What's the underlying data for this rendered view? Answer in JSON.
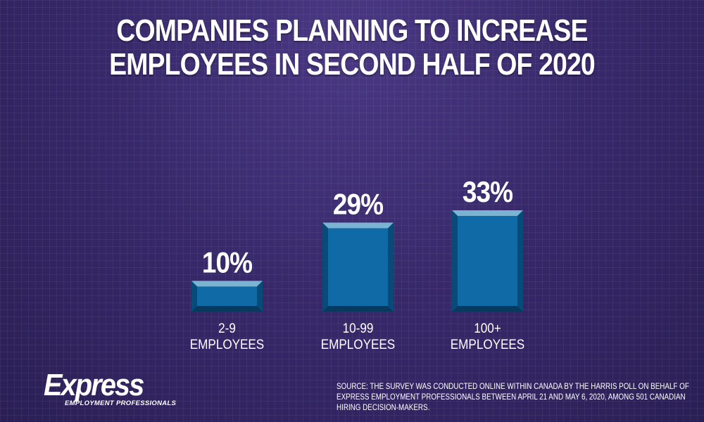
{
  "chart_data": {
    "type": "bar",
    "title": [
      "COMPANIES PLANNING TO INCREASE",
      "EMPLOYEES IN SECOND HALF OF 2020"
    ],
    "categories": [
      [
        "2-9",
        "EMPLOYEES"
      ],
      [
        "10-99",
        "EMPLOYEES"
      ],
      [
        "100+",
        "EMPLOYEES"
      ]
    ],
    "values": [
      10,
      29,
      33
    ],
    "data_labels": [
      "10%",
      "29%",
      "33%"
    ],
    "ylim": [
      0,
      33
    ],
    "grid": false,
    "colors": {
      "bar": "#0f6aa6",
      "bar_top": "#7bb3d3",
      "bar_side": "#0a4a78",
      "bar_bottom": "#083a60"
    }
  },
  "footer": {
    "logo": {
      "word": "Express",
      "sub": "EMPLOYMENT PROFESSIONALS"
    },
    "source": [
      "SOURCE: THE SURVEY WAS CONDUCTED ONLINE WITHIN CANADA BY THE HARRIS POLL ON BEHALF OF",
      "EXPRESS EMPLOYMENT PROFESSIONALS BETWEEN APRIL 21 AND MAY 6, 2020, AMONG 501 CANADIAN",
      "HIRING DECISION-MAKERS."
    ]
  }
}
